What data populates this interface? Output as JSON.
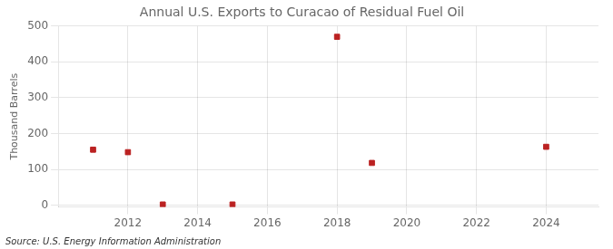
{
  "chart_data": {
    "type": "scatter",
    "title": "Annual U.S. Exports to Curacao of Residual Fuel Oil",
    "ylabel": "Thousand Barrels",
    "annotations": [
      "Source: U.S. Energy Information Administration"
    ],
    "x": [
      2011,
      2012,
      2013,
      2015,
      2018,
      2019,
      2024
    ],
    "values": [
      155,
      148,
      2,
      2,
      470,
      118,
      163
    ],
    "color": "#bb2222",
    "marker": "square",
    "xlim": [
      2010.0,
      2025.5
    ],
    "xticks": [
      2012,
      2014,
      2016,
      2018,
      2020,
      2022,
      2024
    ],
    "ylim": [
      -5,
      500
    ],
    "yticks": [
      0,
      100,
      200,
      300,
      400,
      500
    ],
    "grid": true
  }
}
